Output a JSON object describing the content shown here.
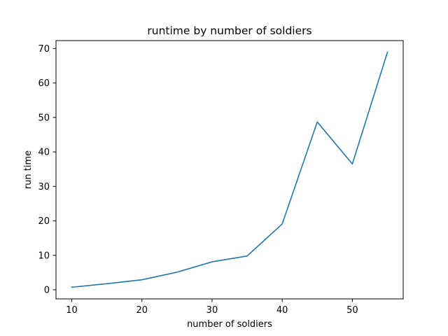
{
  "chart_data": {
    "type": "line",
    "title": "runtime by number of soldiers",
    "xlabel": "number of soldiers",
    "ylabel": "run time",
    "xlim": [
      7.75,
      57.25
    ],
    "ylim": [
      -2.65,
      72.3
    ],
    "xticks": [
      10,
      20,
      30,
      40,
      50
    ],
    "yticks": [
      0,
      10,
      20,
      30,
      40,
      50,
      60,
      70
    ],
    "grid": false,
    "series": [
      {
        "color": "#1f77b4",
        "x": [
          10,
          15,
          20,
          25,
          30,
          35,
          40,
          45,
          50,
          55
        ],
        "y": [
          0.75,
          1.75,
          2.9,
          5.1,
          8.1,
          9.8,
          19.1,
          48.7,
          36.5,
          68.9
        ]
      }
    ]
  }
}
